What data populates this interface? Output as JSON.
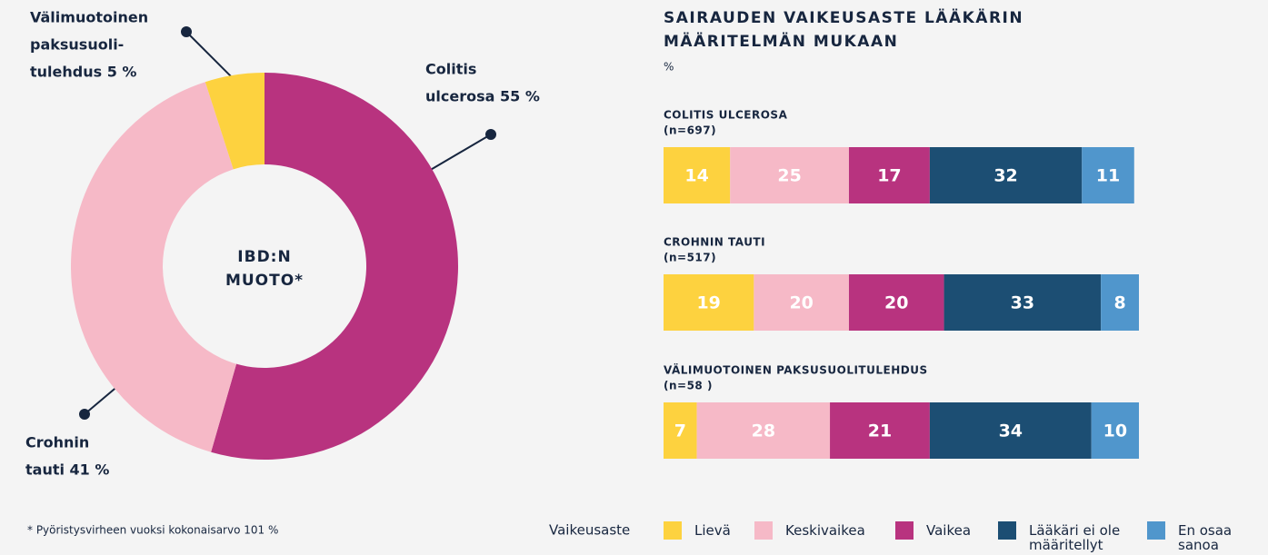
{
  "chart_data": [
    {
      "type": "pie",
      "categories": [
        "Colitis ulcerosa",
        "Crohnin tauti",
        "Välimuotoinen paksusuolitulehdus"
      ],
      "values": [
        55,
        41,
        5
      ],
      "colors": [
        "#b8337f",
        "#f6b9c7",
        "#fdd23f"
      ],
      "label_lines": [
        [
          "Colitis",
          "ulcerosa 55 %"
        ],
        [
          "Crohnin",
          "tauti 41 %"
        ],
        [
          "Välimuotoinen",
          "paksusuoli-",
          "tulehdus 5 %"
        ]
      ],
      "center_lines": [
        "IBD:N",
        "MUOTO*"
      ],
      "footnote": "* Pyöristysvirheen vuoksi kokonaisarvo 101 %"
    },
    {
      "type": "bar",
      "orientation": "horizontal",
      "stacked": true,
      "title_lines": [
        "SAIRAUDEN VAIKEUSASTE LÄÄKÄRIN",
        "MÄÄRITELMÄN MUKAAN"
      ],
      "subtitle": "%",
      "categories": [
        [
          "COLITIS ULCEROSA",
          "(n=697)"
        ],
        [
          "CROHNIN TAUTI",
          "(n=517)"
        ],
        [
          "VÄLIMUOTOINEN PAKSUSUOLITULEHDUS",
          "(n=58 )"
        ]
      ],
      "xlim": [
        0,
        100
      ],
      "legend_title": "Vaikeusaste",
      "series": [
        {
          "name": "Lievä",
          "color": "#fdd23f",
          "values": [
            14,
            19,
            7
          ]
        },
        {
          "name": "Keskivaikea",
          "color": "#f6b9c7",
          "values": [
            25,
            20,
            28
          ]
        },
        {
          "name": "Vaikea",
          "color": "#b8337f",
          "values": [
            17,
            20,
            21
          ]
        },
        {
          "name": "Lääkäri ei ole määritellyt",
          "color": "#1c4e73",
          "values": [
            32,
            33,
            34
          ]
        },
        {
          "name": "En osaa sanoa",
          "color": "#5096cc",
          "values": [
            11,
            8,
            10
          ]
        }
      ]
    }
  ]
}
